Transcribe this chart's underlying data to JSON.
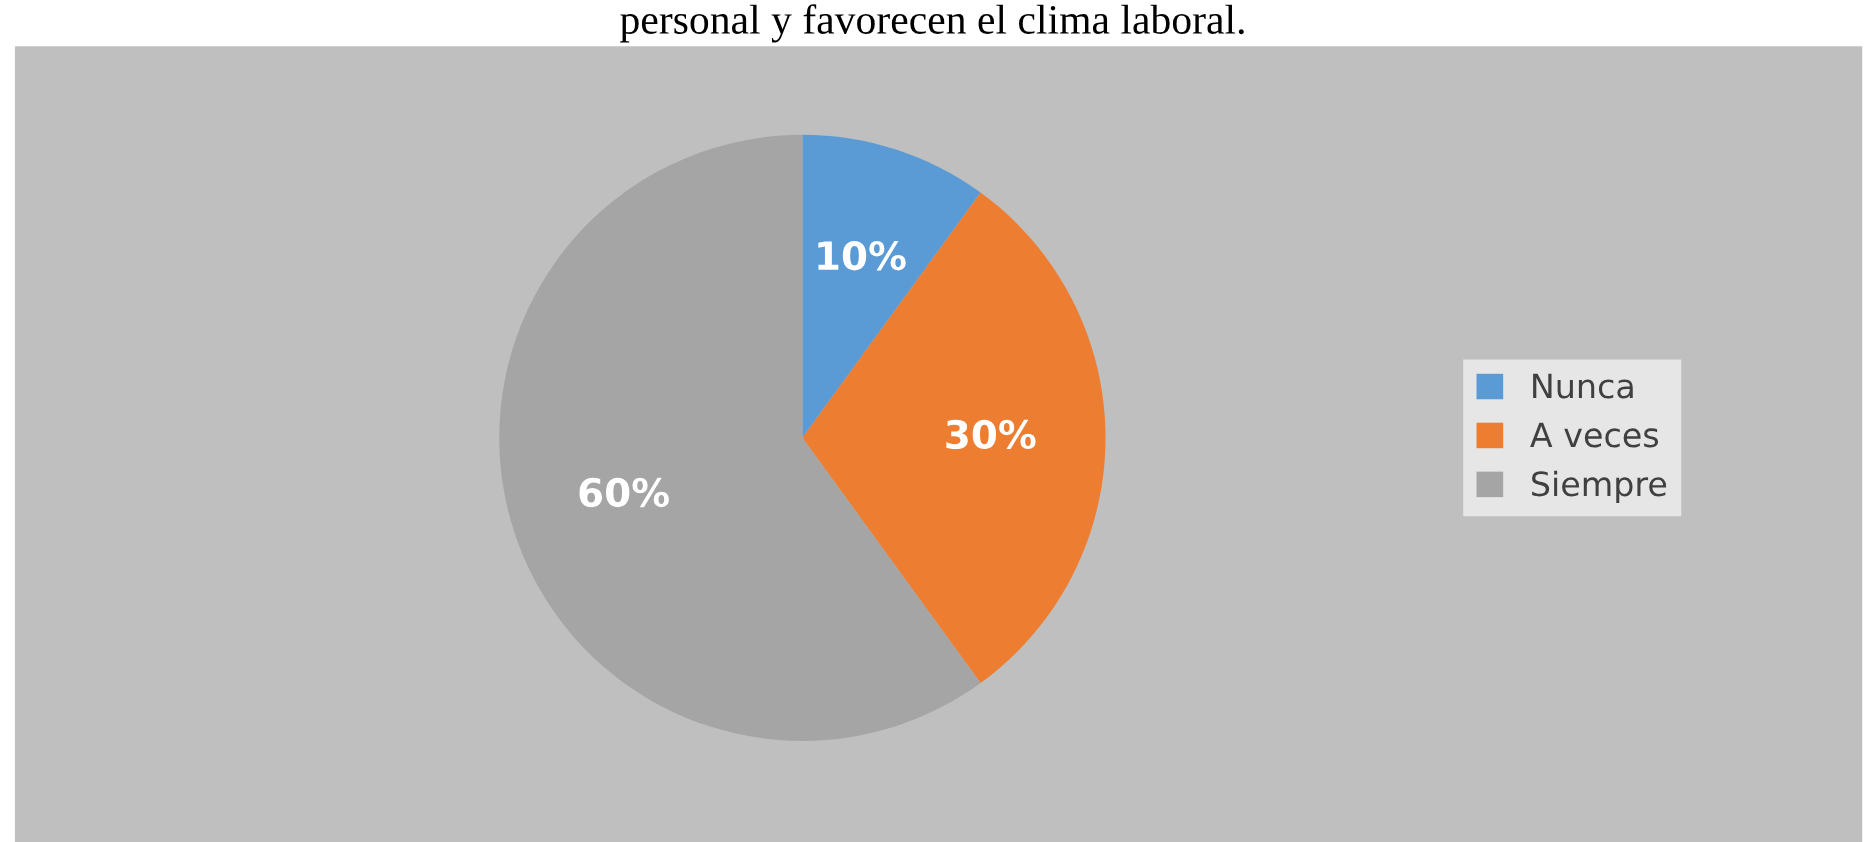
{
  "chart_data": {
    "type": "pie",
    "title": "personal y favorecen el clima laboral.",
    "categories": [
      "Nunca",
      "A veces",
      "Siempre"
    ],
    "values": [
      10,
      30,
      60
    ],
    "colors": [
      "#5b9bd5",
      "#ed7d31",
      "#a5a5a5"
    ],
    "value_labels": [
      "10%",
      "30%",
      "60%"
    ],
    "legend": "right"
  }
}
